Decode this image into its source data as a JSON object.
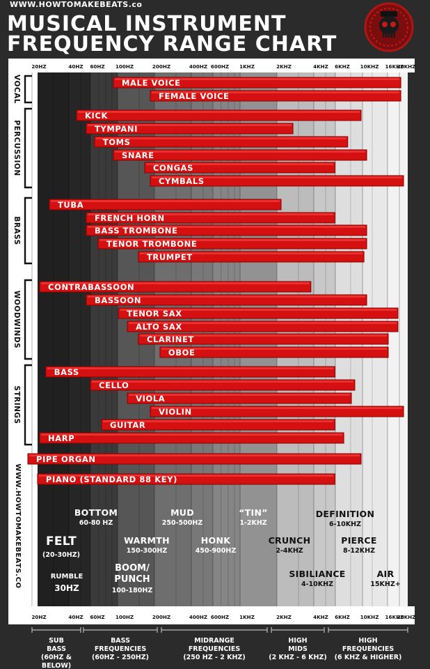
{
  "header": {
    "site": "WWW.HOWTOMAKEBEATS.co",
    "title_line1": "MUSICAL INSTRUMENT",
    "title_line2": "FREQUENCY RANGE CHART"
  },
  "side_url": "WWW.HOWTOMAKEBEATS.CO",
  "chart_data": {
    "type": "bar",
    "orientation": "horizontal",
    "title": "MUSICAL INSTRUMENT FREQUENCY RANGE CHART",
    "x_scale": "log",
    "xlim": [
      15,
      22000
    ],
    "x_ticks": [
      {
        "value": 20,
        "label": "20HZ"
      },
      {
        "value": 40,
        "label": "40HZ"
      },
      {
        "value": 60,
        "label": "60HZ"
      },
      {
        "value": 100,
        "label": "100HZ"
      },
      {
        "value": 200,
        "label": "200HZ"
      },
      {
        "value": 400,
        "label": "400HZ"
      },
      {
        "value": 600,
        "label": "600HZ"
      },
      {
        "value": 1000,
        "label": "1KHZ"
      },
      {
        "value": 2000,
        "label": "2KHZ"
      },
      {
        "value": 4000,
        "label": "4KHZ"
      },
      {
        "value": 6000,
        "label": "6KHZ"
      },
      {
        "value": 10000,
        "label": "10KHZ"
      },
      {
        "value": 16000,
        "label": "16KHZ"
      },
      {
        "value": 20000,
        "label": "20KHZ"
      }
    ],
    "groups": [
      {
        "name": "VOCAL",
        "instruments": [
          {
            "name": "MALE VOICE",
            "low": 100,
            "high": 19000
          },
          {
            "name": "FEMALE VOICE",
            "low": 200,
            "high": 19000
          }
        ]
      },
      {
        "name": "PERCUSSION",
        "instruments": [
          {
            "name": "KICK",
            "low": 50,
            "high": 9000
          },
          {
            "name": "TYMPANI",
            "low": 60,
            "high": 2500
          },
          {
            "name": "TOMS",
            "low": 70,
            "high": 7000
          },
          {
            "name": "SNARE",
            "low": 100,
            "high": 10000
          },
          {
            "name": "CONGAS",
            "low": 180,
            "high": 5500
          },
          {
            "name": "CYMBALS",
            "low": 200,
            "high": 20000
          }
        ]
      },
      {
        "name": "BRASS",
        "instruments": [
          {
            "name": "TUBA",
            "low": 30,
            "high": 2000
          },
          {
            "name": "FRENCH HORN",
            "low": 60,
            "high": 5500
          },
          {
            "name": "BASS TROMBONE",
            "low": 60,
            "high": 10000
          },
          {
            "name": "TENOR TROMBONE",
            "low": 75,
            "high": 10000
          },
          {
            "name": "TRUMPET",
            "low": 160,
            "high": 9500
          }
        ]
      },
      {
        "name": "WOODWINDS",
        "instruments": [
          {
            "name": "CONTRABASSOON",
            "low": 25,
            "high": 3500
          },
          {
            "name": "BASSOON",
            "low": 60,
            "high": 10000
          },
          {
            "name": "TENOR SAX",
            "low": 110,
            "high": 18000
          },
          {
            "name": "ALTO SAX",
            "low": 130,
            "high": 18000
          },
          {
            "name": "CLARINET",
            "low": 160,
            "high": 15000
          },
          {
            "name": "OBOE",
            "low": 240,
            "high": 15000
          }
        ]
      },
      {
        "name": "STRINGS",
        "instruments": [
          {
            "name": "BASS",
            "low": 28,
            "high": 5500
          },
          {
            "name": "CELLO",
            "low": 65,
            "high": 8000
          },
          {
            "name": "VIOLA",
            "low": 130,
            "high": 7500
          },
          {
            "name": "VIOLIN",
            "low": 200,
            "high": 20000
          },
          {
            "name": "GUITAR",
            "low": 80,
            "high": 5500
          },
          {
            "name": "HARP",
            "low": 25,
            "high": 6500
          }
        ]
      },
      {
        "name": "",
        "instruments": [
          {
            "name": "PIPE ORGAN",
            "low": 20,
            "high": 9000
          },
          {
            "name": "PIANO (STANDARD 88 KEY)",
            "low": 24,
            "high": 5500
          }
        ]
      }
    ],
    "zone_labels": [
      {
        "title": "BOTTOM",
        "sub": "60-80 HZ"
      },
      {
        "title": "MUD",
        "sub": "250-500HZ"
      },
      {
        "title": "“TIN”",
        "sub": "1-2KHZ"
      },
      {
        "title": "DEFINITION",
        "sub": "6-10KHZ"
      },
      {
        "title": "FELT",
        "sub": "(20-30HZ)"
      },
      {
        "title": "WARMTH",
        "sub": "150-300HZ"
      },
      {
        "title": "HONK",
        "sub": "450-900HZ"
      },
      {
        "title": "CRUNCH",
        "sub": "2-4KHZ"
      },
      {
        "title": "PIERCE",
        "sub": "8-12KHZ"
      },
      {
        "title": "RUMBLE",
        "sub": "30HZ"
      },
      {
        "title": "BOOM/ PUNCH",
        "sub": "100-180HZ"
      },
      {
        "title": "SIBILIANCE",
        "sub": "4-10KHZ"
      },
      {
        "title": "AIR",
        "sub": "15KHZ+"
      }
    ],
    "bands": [
      {
        "lines": [
          "SUB",
          "BASS",
          "(60HZ &",
          "BELOW)"
        ]
      },
      {
        "lines": [
          "BASS",
          "FREQUENCIES",
          "(60HZ - 250HZ)"
        ]
      },
      {
        "lines": [
          "MIDRANGE",
          "FREQUENCIES",
          "(250 HZ - 2 KHZ)"
        ]
      },
      {
        "lines": [
          "HIGH",
          "MIDS",
          "(2 KHZ - 6 KHZ)"
        ]
      },
      {
        "lines": [
          "HIGH",
          "FREQUENCIES",
          "(6 KHZ & HIGHER)"
        ]
      }
    ],
    "colors": {
      "bar": "#d41010",
      "bar_edge": "#8a0000",
      "text": "#ffffff",
      "background": "#2b2b2b"
    }
  }
}
